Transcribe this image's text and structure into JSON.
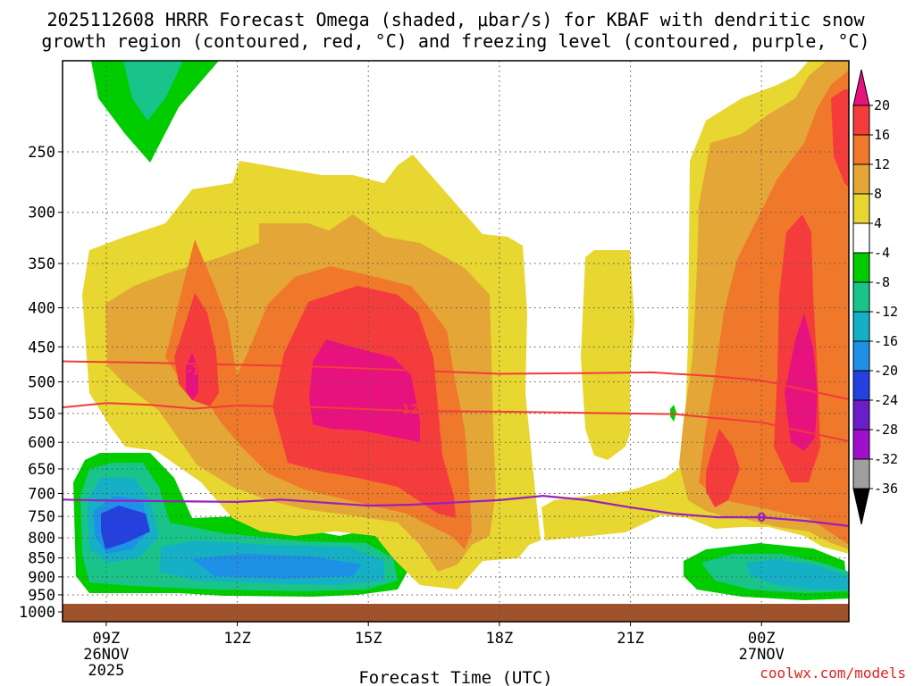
{
  "chart_data": {
    "type": "contour-timeheight",
    "title_line1": "2025112608 HRRR Forecast Omega (shaded, μbar/s) for KBAF with dendritic snow",
    "title_line2": "growth region (contoured, red, °C) and freezing level (contoured, purple, °C)",
    "xlabel": "Forecast Time (UTC)",
    "credit": "coolwx.com/models",
    "x_ticks": [
      {
        "hour": 9,
        "label": "09Z",
        "date1": "26NOV",
        "date2": "2025"
      },
      {
        "hour": 12,
        "label": "12Z",
        "date1": "",
        "date2": ""
      },
      {
        "hour": 15,
        "label": "15Z",
        "date1": "",
        "date2": ""
      },
      {
        "hour": 18,
        "label": "18Z",
        "date1": "",
        "date2": ""
      },
      {
        "hour": 21,
        "label": "21Z",
        "date1": "",
        "date2": ""
      },
      {
        "hour": 24,
        "label": "00Z",
        "date1": "27NOV",
        "date2": ""
      }
    ],
    "xlim_hours": [
      8,
      26
    ],
    "ylabels": [
      "250",
      "300",
      "350",
      "400",
      "450",
      "500",
      "550",
      "600",
      "650",
      "700",
      "750",
      "800",
      "850",
      "900",
      "950",
      "1000"
    ],
    "ylim_hPa": [
      1030,
      190
    ],
    "colorbar": {
      "levels": [
        "20",
        "16",
        "12",
        "8",
        "4",
        "-4",
        "-8",
        "-12",
        "-16",
        "-20",
        "-24",
        "-28",
        "-32",
        "-36"
      ],
      "colors": [
        "#e8127e",
        "#f53c3c",
        "#f0782a",
        "#e4a637",
        "#e8d730",
        "#ffffff",
        "#00cc00",
        "#18c48a",
        "#15b0c6",
        "#1e90e6",
        "#2440de",
        "#6a1ec8",
        "#a010cc",
        "#9f9f9f"
      ],
      "top_arrow_color": "#e8127e",
      "bottom_arrow_color": "#000000"
    },
    "dgz_contours": [
      {
        "label": "-18",
        "color": "#f03c3c",
        "points": [
          [
            8,
            470
          ],
          [
            10,
            472
          ],
          [
            12,
            475
          ],
          [
            14,
            478
          ],
          [
            16,
            483
          ],
          [
            18,
            488
          ],
          [
            20,
            487
          ],
          [
            21.5,
            486
          ],
          [
            23,
            492
          ],
          [
            24,
            498
          ],
          [
            26,
            527
          ]
        ]
      },
      {
        "label": "-12",
        "color": "#f03c3c",
        "points": [
          [
            8,
            540
          ],
          [
            9,
            533
          ],
          [
            10,
            536
          ],
          [
            11,
            542
          ],
          [
            12,
            537
          ],
          [
            14,
            540
          ],
          [
            16,
            546
          ],
          [
            18,
            547
          ],
          [
            20,
            549
          ],
          [
            22,
            551
          ],
          [
            24,
            565
          ],
          [
            26,
            598
          ]
        ]
      }
    ],
    "freezing_level": {
      "label": "0",
      "color": "#9b1ec0",
      "points": [
        [
          8,
          713
        ],
        [
          9,
          715
        ],
        [
          11,
          717
        ],
        [
          12,
          718
        ],
        [
          13,
          713
        ],
        [
          15,
          726
        ],
        [
          16,
          724
        ],
        [
          18,
          714
        ],
        [
          19,
          705
        ],
        [
          20,
          714
        ],
        [
          21,
          730
        ],
        [
          22,
          744
        ],
        [
          23,
          752
        ],
        [
          24,
          752
        ],
        [
          25,
          760
        ],
        [
          26,
          772
        ]
      ]
    },
    "omega_positive_cores": [
      {
        "center_hour": 14.6,
        "center_hPa": 540,
        "peak": 20
      },
      {
        "center_hour": 25.0,
        "center_hPa": 520,
        "peak": 20
      },
      {
        "center_hour": 10.9,
        "center_hPa": 480,
        "peak": 16
      },
      {
        "center_hour": 23.6,
        "center_hPa": 670,
        "peak": 16
      }
    ],
    "omega_negative_cores": [
      {
        "center_hour": 9.2,
        "center_hPa": 800,
        "peak": -24
      },
      {
        "center_hour": 14.2,
        "center_hPa": 900,
        "peak": -16
      },
      {
        "center_hour": 9.9,
        "center_hPa": 210,
        "peak": -12
      },
      {
        "center_hour": 24.8,
        "center_hPa": 900,
        "peak": -12
      }
    ],
    "surface_color": "#a0522d"
  }
}
